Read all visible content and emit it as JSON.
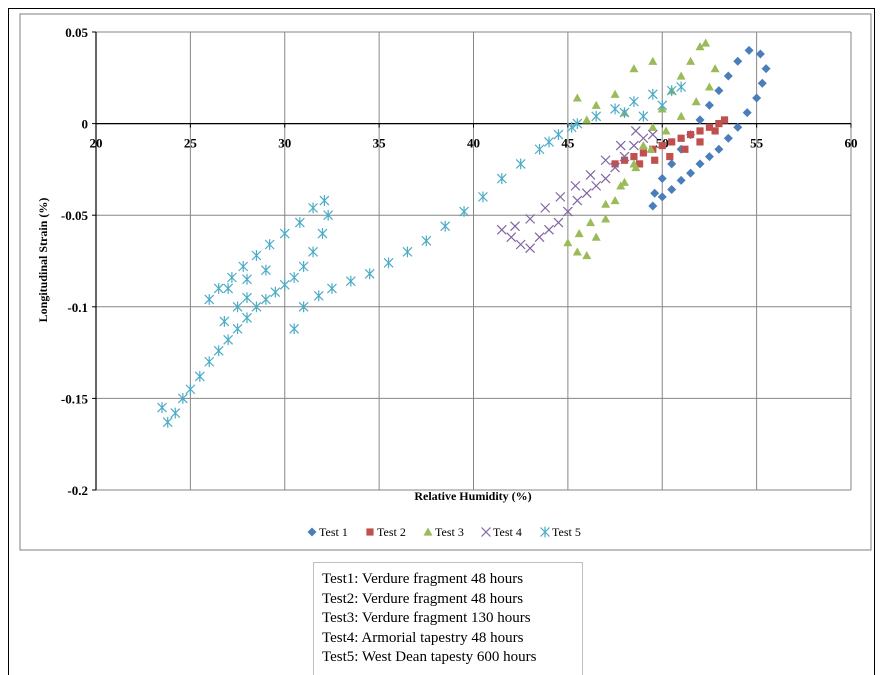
{
  "chart_data": {
    "type": "scatter",
    "title": "",
    "xlabel": "Relative Humidity (%)",
    "ylabel": "Longitudinal Strain (%)",
    "xlim": [
      20,
      60
    ],
    "ylim": [
      -0.2,
      0.05
    ],
    "x_ticks": [
      20,
      25,
      30,
      35,
      40,
      45,
      50,
      55,
      60
    ],
    "y_ticks": [
      0.05,
      0,
      -0.05,
      -0.1,
      -0.15,
      -0.2
    ],
    "x_tick_labels": [
      "20",
      "25",
      "30",
      "35",
      "40",
      "45",
      "50",
      "55",
      "60"
    ],
    "y_tick_labels": [
      "0.05",
      "0",
      "-0.05",
      "-0.1",
      "-0.15",
      "-0.2"
    ],
    "grid": true,
    "legend_position": "bottom",
    "series": [
      {
        "name": "Test 1",
        "marker": "diamond",
        "color": "#4a7ebb",
        "points": [
          [
            49.5,
            -0.045
          ],
          [
            50.0,
            -0.04
          ],
          [
            50.5,
            -0.036
          ],
          [
            51.0,
            -0.031
          ],
          [
            51.5,
            -0.027
          ],
          [
            52.0,
            -0.022
          ],
          [
            52.5,
            -0.018
          ],
          [
            53.0,
            -0.014
          ],
          [
            53.5,
            -0.008
          ],
          [
            54.0,
            -0.002
          ],
          [
            54.5,
            0.006
          ],
          [
            55.0,
            0.014
          ],
          [
            55.3,
            0.022
          ],
          [
            55.5,
            0.03
          ],
          [
            55.2,
            0.038
          ],
          [
            54.6,
            0.04
          ],
          [
            54.0,
            0.034
          ],
          [
            53.5,
            0.026
          ],
          [
            53.0,
            0.018
          ],
          [
            52.5,
            0.01
          ],
          [
            52.0,
            0.002
          ],
          [
            51.5,
            -0.006
          ],
          [
            51.0,
            -0.014
          ],
          [
            50.5,
            -0.022
          ],
          [
            50.0,
            -0.03
          ],
          [
            49.6,
            -0.038
          ]
        ]
      },
      {
        "name": "Test 2",
        "marker": "square",
        "color": "#c0504d",
        "points": [
          [
            47.5,
            -0.022
          ],
          [
            48.0,
            -0.02
          ],
          [
            48.5,
            -0.018
          ],
          [
            49.0,
            -0.016
          ],
          [
            49.5,
            -0.014
          ],
          [
            50.0,
            -0.012
          ],
          [
            50.5,
            -0.01
          ],
          [
            51.0,
            -0.008
          ],
          [
            51.5,
            -0.006
          ],
          [
            52.0,
            -0.004
          ],
          [
            52.5,
            -0.002
          ],
          [
            53.0,
            0.0
          ],
          [
            53.3,
            0.002
          ],
          [
            52.8,
            -0.004
          ],
          [
            52.0,
            -0.01
          ],
          [
            51.2,
            -0.014
          ],
          [
            50.4,
            -0.018
          ],
          [
            49.6,
            -0.02
          ],
          [
            48.8,
            -0.022
          ]
        ]
      },
      {
        "name": "Test 3",
        "marker": "triangle",
        "color": "#9bbb59",
        "points": [
          [
            45.0,
            -0.065
          ],
          [
            45.5,
            -0.07
          ],
          [
            46.0,
            -0.072
          ],
          [
            46.5,
            -0.062
          ],
          [
            47.0,
            -0.052
          ],
          [
            47.5,
            -0.042
          ],
          [
            48.0,
            -0.032
          ],
          [
            48.5,
            -0.022
          ],
          [
            49.0,
            -0.012
          ],
          [
            49.5,
            -0.002
          ],
          [
            50.0,
            0.008
          ],
          [
            50.5,
            0.018
          ],
          [
            51.0,
            0.026
          ],
          [
            51.5,
            0.034
          ],
          [
            52.0,
            0.042
          ],
          [
            52.3,
            0.044
          ],
          [
            52.8,
            0.03
          ],
          [
            52.5,
            0.02
          ],
          [
            51.8,
            0.012
          ],
          [
            51.0,
            0.004
          ],
          [
            50.2,
            -0.004
          ],
          [
            49.4,
            -0.014
          ],
          [
            48.6,
            -0.024
          ],
          [
            47.8,
            -0.034
          ],
          [
            47.0,
            -0.044
          ],
          [
            46.2,
            -0.054
          ],
          [
            45.6,
            -0.06
          ],
          [
            48.5,
            0.03
          ],
          [
            49.5,
            0.034
          ],
          [
            45.5,
            0.014
          ],
          [
            46.5,
            0.01
          ],
          [
            47.5,
            0.016
          ],
          [
            48.0,
            0.006
          ],
          [
            46.0,
            0.002
          ]
        ]
      },
      {
        "name": "Test 4",
        "marker": "x",
        "color": "#8064a2",
        "points": [
          [
            41.5,
            -0.058
          ],
          [
            42.0,
            -0.062
          ],
          [
            42.5,
            -0.066
          ],
          [
            43.0,
            -0.068
          ],
          [
            43.5,
            -0.062
          ],
          [
            44.0,
            -0.058
          ],
          [
            44.5,
            -0.054
          ],
          [
            45.0,
            -0.048
          ],
          [
            45.5,
            -0.042
          ],
          [
            46.0,
            -0.038
          ],
          [
            46.5,
            -0.034
          ],
          [
            47.0,
            -0.03
          ],
          [
            47.5,
            -0.024
          ],
          [
            48.0,
            -0.018
          ],
          [
            48.5,
            -0.012
          ],
          [
            49.0,
            -0.008
          ],
          [
            49.5,
            -0.006
          ],
          [
            48.6,
            -0.004
          ],
          [
            47.8,
            -0.012
          ],
          [
            47.0,
            -0.02
          ],
          [
            46.2,
            -0.028
          ],
          [
            45.4,
            -0.034
          ],
          [
            44.6,
            -0.04
          ],
          [
            43.8,
            -0.046
          ],
          [
            43.0,
            -0.052
          ],
          [
            42.2,
            -0.056
          ]
        ]
      },
      {
        "name": "Test 5",
        "marker": "star",
        "color": "#4bacc6",
        "points": [
          [
            23.5,
            -0.155
          ],
          [
            23.8,
            -0.163
          ],
          [
            24.2,
            -0.158
          ],
          [
            24.6,
            -0.15
          ],
          [
            25.0,
            -0.145
          ],
          [
            25.5,
            -0.138
          ],
          [
            26.0,
            -0.13
          ],
          [
            26.5,
            -0.124
          ],
          [
            27.0,
            -0.118
          ],
          [
            27.5,
            -0.112
          ],
          [
            28.0,
            -0.106
          ],
          [
            28.5,
            -0.1
          ],
          [
            29.0,
            -0.096
          ],
          [
            29.5,
            -0.092
          ],
          [
            30.0,
            -0.088
          ],
          [
            30.5,
            -0.084
          ],
          [
            31.0,
            -0.078
          ],
          [
            31.5,
            -0.07
          ],
          [
            32.0,
            -0.06
          ],
          [
            32.3,
            -0.05
          ],
          [
            32.1,
            -0.042
          ],
          [
            31.5,
            -0.046
          ],
          [
            30.8,
            -0.054
          ],
          [
            30.0,
            -0.06
          ],
          [
            29.2,
            -0.066
          ],
          [
            28.5,
            -0.072
          ],
          [
            27.8,
            -0.078
          ],
          [
            27.2,
            -0.084
          ],
          [
            26.5,
            -0.09
          ],
          [
            26.0,
            -0.096
          ],
          [
            27.0,
            -0.09
          ],
          [
            28.0,
            -0.085
          ],
          [
            29.0,
            -0.08
          ],
          [
            28.0,
            -0.095
          ],
          [
            27.5,
            -0.1
          ],
          [
            26.8,
            -0.108
          ],
          [
            30.5,
            -0.112
          ],
          [
            31.0,
            -0.1
          ],
          [
            31.8,
            -0.094
          ],
          [
            32.5,
            -0.09
          ],
          [
            33.5,
            -0.086
          ],
          [
            34.5,
            -0.082
          ],
          [
            35.5,
            -0.076
          ],
          [
            36.5,
            -0.07
          ],
          [
            37.5,
            -0.064
          ],
          [
            38.5,
            -0.056
          ],
          [
            39.5,
            -0.048
          ],
          [
            40.5,
            -0.04
          ],
          [
            41.5,
            -0.03
          ],
          [
            42.5,
            -0.022
          ],
          [
            43.5,
            -0.014
          ],
          [
            44.5,
            -0.006
          ],
          [
            45.5,
            0.0
          ],
          [
            46.5,
            0.004
          ],
          [
            47.5,
            0.008
          ],
          [
            48.5,
            0.012
          ],
          [
            49.5,
            0.016
          ],
          [
            50.5,
            0.018
          ],
          [
            51.0,
            0.02
          ],
          [
            48.0,
            0.006
          ],
          [
            49.0,
            0.004
          ],
          [
            50.0,
            0.01
          ],
          [
            45.2,
            -0.002
          ],
          [
            44.0,
            -0.01
          ]
        ]
      }
    ]
  },
  "caption": {
    "lines": [
      "Test1: Verdure fragment 48 hours",
      "Test2: Verdure fragment 48 hours",
      "Test3: Verdure fragment 130 hours",
      "Test4: Armorial tapestry 48 hours",
      "Test5: West Dean tapesty 600 hours"
    ]
  }
}
